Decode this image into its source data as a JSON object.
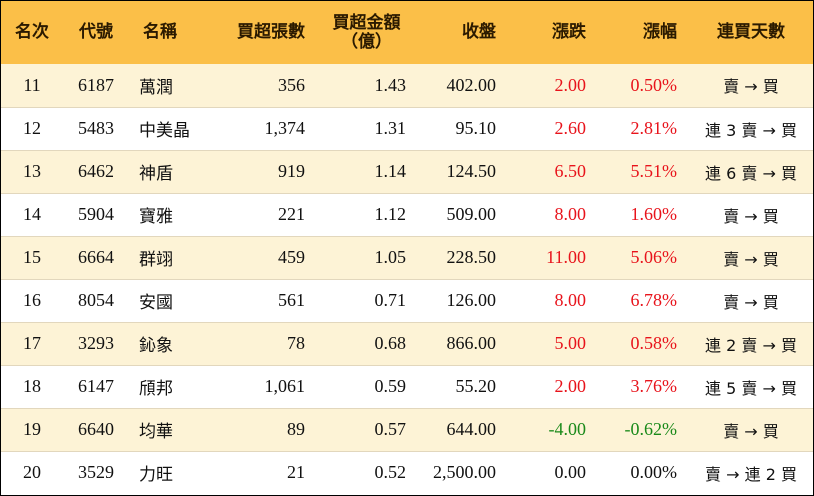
{
  "headers": {
    "rank": "名次",
    "code": "代號",
    "name": "名稱",
    "shares": "買超張數",
    "amount_line1": "買超金額",
    "amount_line2": "（億）",
    "close": "收盤",
    "change": "漲跌",
    "pct": "漲幅",
    "streak": "連買天數"
  },
  "rows": [
    {
      "rank": "11",
      "code": "6187",
      "name": "萬潤",
      "shares": "356",
      "amount": "1.43",
      "close": "402.00",
      "change": "2.00",
      "pct": "0.50%",
      "streak": "賣 → 買",
      "trend": "up"
    },
    {
      "rank": "12",
      "code": "5483",
      "name": "中美晶",
      "shares": "1,374",
      "amount": "1.31",
      "close": "95.10",
      "change": "2.60",
      "pct": "2.81%",
      "streak": "連 3 賣 → 買",
      "trend": "up"
    },
    {
      "rank": "13",
      "code": "6462",
      "name": "神盾",
      "shares": "919",
      "amount": "1.14",
      "close": "124.50",
      "change": "6.50",
      "pct": "5.51%",
      "streak": "連 6 賣 → 買",
      "trend": "up"
    },
    {
      "rank": "14",
      "code": "5904",
      "name": "寶雅",
      "shares": "221",
      "amount": "1.12",
      "close": "509.00",
      "change": "8.00",
      "pct": "1.60%",
      "streak": "賣 → 買",
      "trend": "up"
    },
    {
      "rank": "15",
      "code": "6664",
      "name": "群翊",
      "shares": "459",
      "amount": "1.05",
      "close": "228.50",
      "change": "11.00",
      "pct": "5.06%",
      "streak": "賣 → 買",
      "trend": "up"
    },
    {
      "rank": "16",
      "code": "8054",
      "name": "安國",
      "shares": "561",
      "amount": "0.71",
      "close": "126.00",
      "change": "8.00",
      "pct": "6.78%",
      "streak": "賣 → 買",
      "trend": "up"
    },
    {
      "rank": "17",
      "code": "3293",
      "name": "鈊象",
      "shares": "78",
      "amount": "0.68",
      "close": "866.00",
      "change": "5.00",
      "pct": "0.58%",
      "streak": "連 2 賣 → 買",
      "trend": "up"
    },
    {
      "rank": "18",
      "code": "6147",
      "name": "頎邦",
      "shares": "1,061",
      "amount": "0.59",
      "close": "55.20",
      "change": "2.00",
      "pct": "3.76%",
      "streak": "連 5 賣 → 買",
      "trend": "up"
    },
    {
      "rank": "19",
      "code": "6640",
      "name": "均華",
      "shares": "89",
      "amount": "0.57",
      "close": "644.00",
      "change": "-4.00",
      "pct": "-0.62%",
      "streak": "賣 → 買",
      "trend": "down"
    },
    {
      "rank": "20",
      "code": "3529",
      "name": "力旺",
      "shares": "21",
      "amount": "0.52",
      "close": "2,500.00",
      "change": "0.00",
      "pct": "0.00%",
      "streak": "賣 → 連 2 買",
      "trend": "flat"
    }
  ],
  "colors": {
    "header_bg": "#fbbf48",
    "odd_row_bg": "#fdf3d6",
    "up": "#e8131b",
    "down": "#1a8a1a",
    "flat": "#111111"
  }
}
